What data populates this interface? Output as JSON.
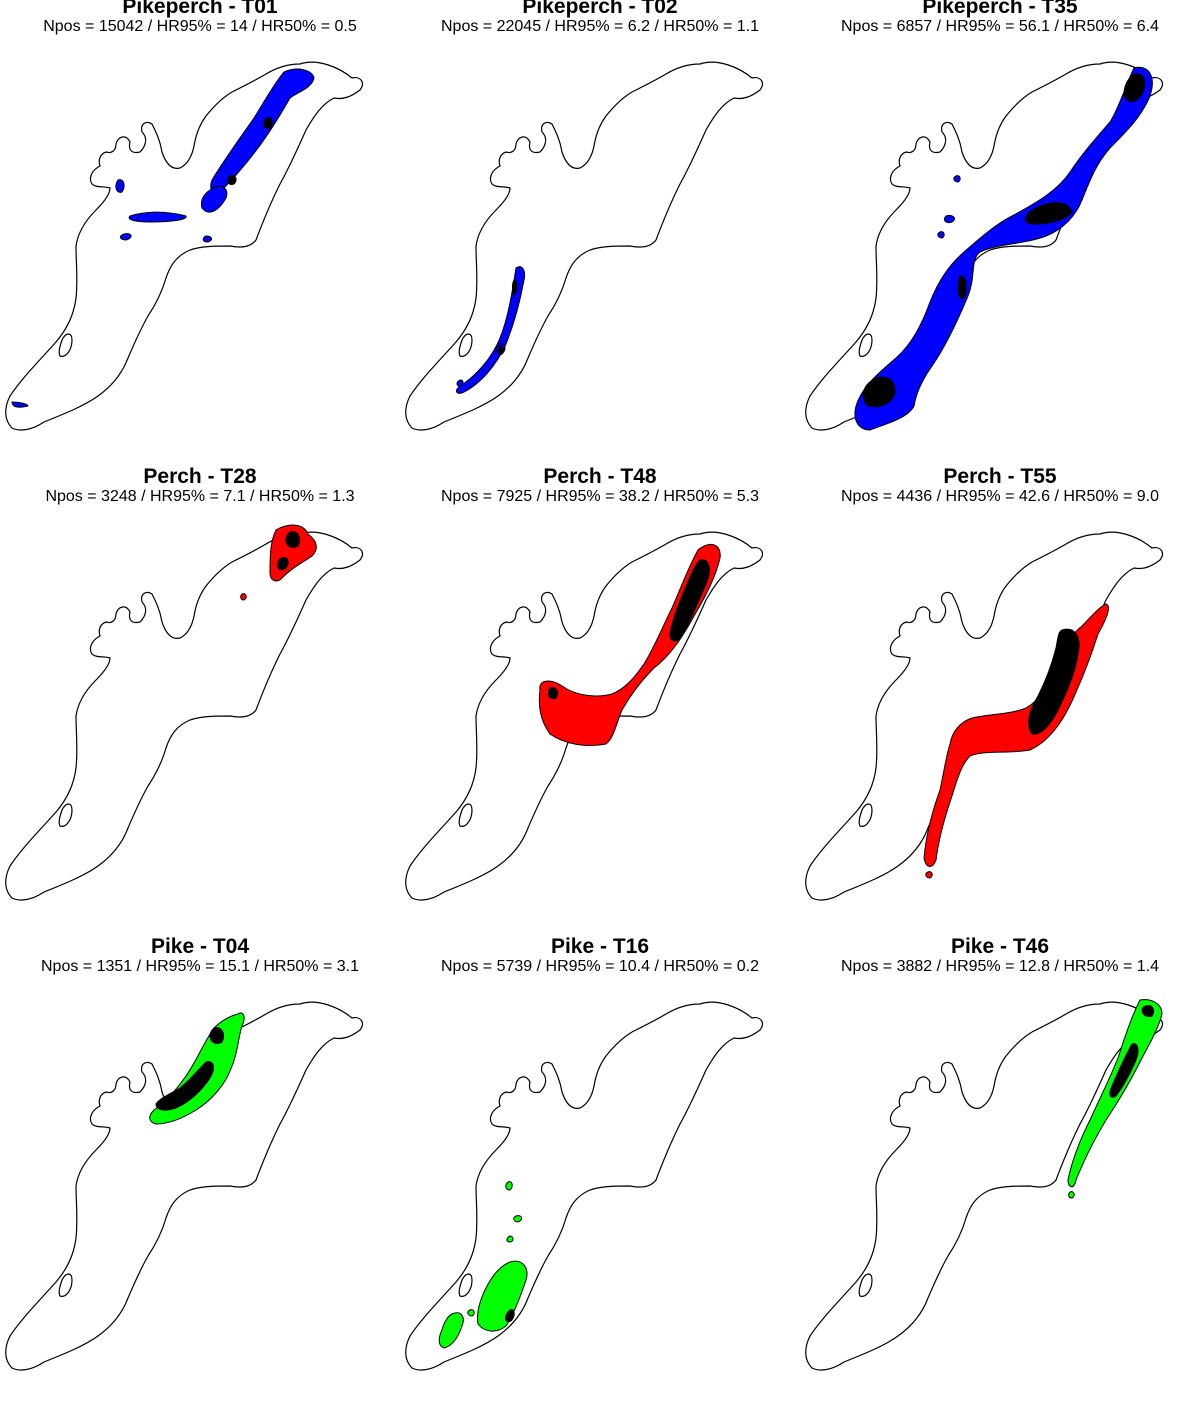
{
  "colors": {
    "Pikeperch": "#0000ff",
    "Perch": "#ff0000",
    "Pike": "#00ff00",
    "core": "#000000",
    "outline": "#000000"
  },
  "panels": [
    {
      "species": "Pikeperch",
      "tag": "T01",
      "title": "Pikeperch - T01",
      "npos": "15042",
      "hr95": "14",
      "hr50": "0.5"
    },
    {
      "species": "Pikeperch",
      "tag": "T02",
      "title": "Pikeperch - T02",
      "npos": "22045",
      "hr95": "6.2",
      "hr50": "1.1"
    },
    {
      "species": "Pikeperch",
      "tag": "T35",
      "title": "Pikeperch - T35",
      "npos": "6857",
      "hr95": "56.1",
      "hr50": "6.4"
    },
    {
      "species": "Perch",
      "tag": "T28",
      "title": "Perch - T28",
      "npos": "3248",
      "hr95": "7.1",
      "hr50": "1.3"
    },
    {
      "species": "Perch",
      "tag": "T48",
      "title": "Perch - T48",
      "npos": "7925",
      "hr95": "38.2",
      "hr50": "5.3"
    },
    {
      "species": "Perch",
      "tag": "T55",
      "title": "Perch - T55",
      "npos": "4436",
      "hr95": "42.6",
      "hr50": "9.0"
    },
    {
      "species": "Pike",
      "tag": "T04",
      "title": "Pike - T04",
      "npos": "1351",
      "hr95": "15.1",
      "hr50": "3.1"
    },
    {
      "species": "Pike",
      "tag": "T16",
      "title": "Pike - T16",
      "npos": "5739",
      "hr95": "10.4",
      "hr50": "0.2"
    },
    {
      "species": "Pike",
      "tag": "T46",
      "title": "Pike - T46",
      "npos": "3882",
      "hr95": "12.8",
      "hr50": "1.4"
    }
  ],
  "labels": {
    "npos_prefix": "Npos = ",
    "hr95_prefix": " / HR95% = ",
    "hr50_prefix": " / HR50% = "
  }
}
